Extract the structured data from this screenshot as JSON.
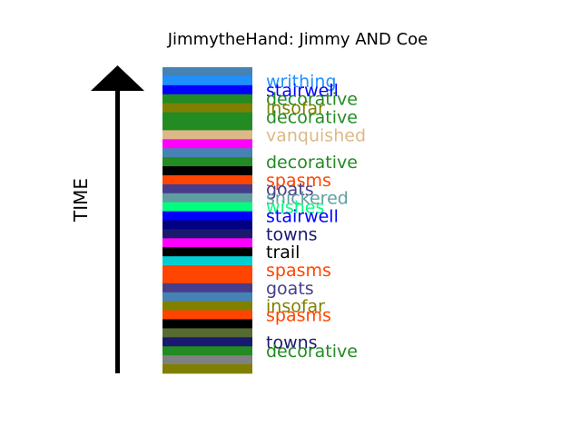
{
  "chart_data": {
    "type": "bar",
    "title": "JimmytheHand: Jimmy AND Coe",
    "ylabel": "TIME",
    "segments": [
      {
        "color": "#4682b4"
      },
      {
        "color": "#1e90ff",
        "label": "writhing"
      },
      {
        "color": "#0000ff",
        "label": "stairwell"
      },
      {
        "color": "#228b22",
        "label": "decorative"
      },
      {
        "color": "#808000",
        "label": "insofar"
      },
      {
        "color": "#228b22",
        "label": "decorative"
      },
      {
        "color": "#228b22"
      },
      {
        "color": "#deb887",
        "label": "vanquished"
      },
      {
        "color": "#ff00ff"
      },
      {
        "color": "#4682b4"
      },
      {
        "color": "#228b22",
        "label": "decorative"
      },
      {
        "color": "#000000"
      },
      {
        "color": "#ff4500",
        "label": "spasms"
      },
      {
        "color": "#483d8b",
        "label": "goats"
      },
      {
        "color": "#5f9ea0",
        "label": "snickered"
      },
      {
        "color": "#00ff7f",
        "label": "wishes"
      },
      {
        "color": "#0000ff",
        "label": "stairwell"
      },
      {
        "color": "#000080"
      },
      {
        "color": "#191970",
        "label": "towns"
      },
      {
        "color": "#ff00ff"
      },
      {
        "color": "#000000",
        "label": "trail"
      },
      {
        "color": "#00ced1"
      },
      {
        "color": "#ff4500",
        "label": "spasms"
      },
      {
        "color": "#ff4500"
      },
      {
        "color": "#483d8b",
        "label": "goats"
      },
      {
        "color": "#4682b4"
      },
      {
        "color": "#808000",
        "label": "insofar"
      },
      {
        "color": "#ff4500",
        "label": "spasms"
      },
      {
        "color": "#000000"
      },
      {
        "color": "#556b2f"
      },
      {
        "color": "#191970",
        "label": "towns"
      },
      {
        "color": "#228b22",
        "label": "decorative"
      },
      {
        "color": "#808080"
      },
      {
        "color": "#808000"
      }
    ]
  }
}
